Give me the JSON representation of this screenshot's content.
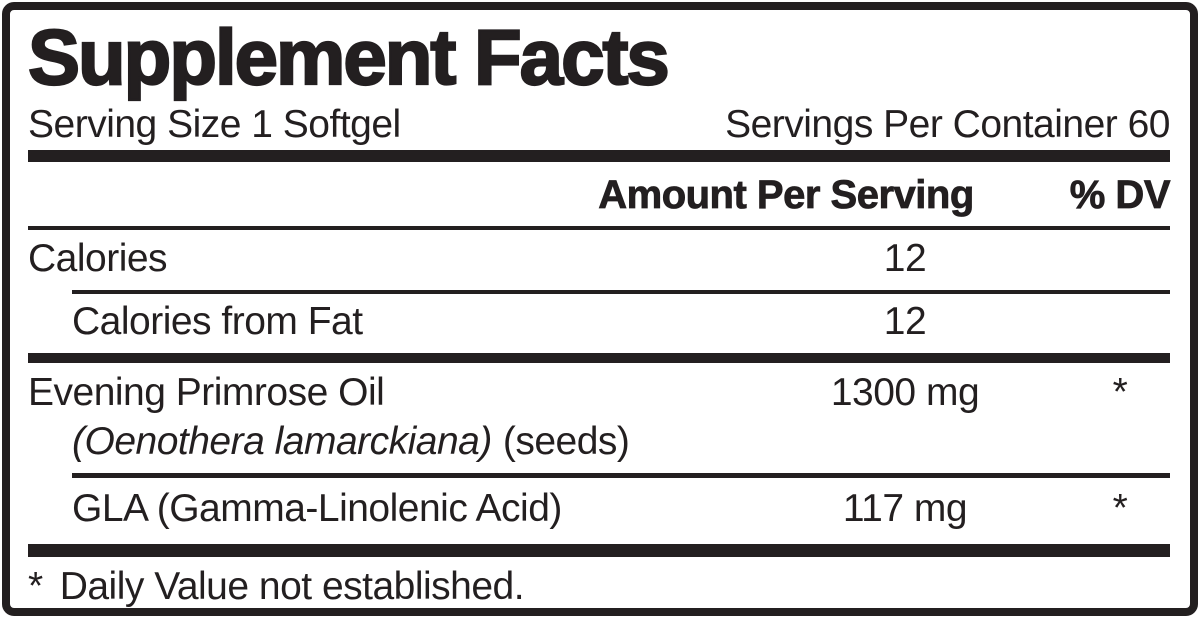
{
  "label": {
    "title": "Supplement Facts",
    "serving_size": "Serving Size 1 Softgel",
    "servings_per_container": "Servings Per Container 60",
    "columns": {
      "amount": "Amount Per Serving",
      "dv": "% DV"
    },
    "rows": [
      {
        "name": "Calories",
        "amount": "12",
        "dv": "",
        "indent": false
      },
      {
        "name": "Calories from Fat",
        "amount": "12",
        "dv": "",
        "indent": true
      },
      {
        "name": "Evening Primrose Oil",
        "botanical_italic": "(Oenothera lamarckiana)",
        "plant_part": "(seeds)",
        "amount": "1300 mg",
        "dv": "*",
        "indent": false
      },
      {
        "name": "GLA (Gamma-Linolenic Acid)",
        "amount": "117 mg",
        "dv": "*",
        "indent": true
      }
    ],
    "footnote": {
      "symbol": "*",
      "text": "Daily Value not established."
    },
    "colors": {
      "ink": "#231f20",
      "paper": "#ffffff"
    }
  }
}
